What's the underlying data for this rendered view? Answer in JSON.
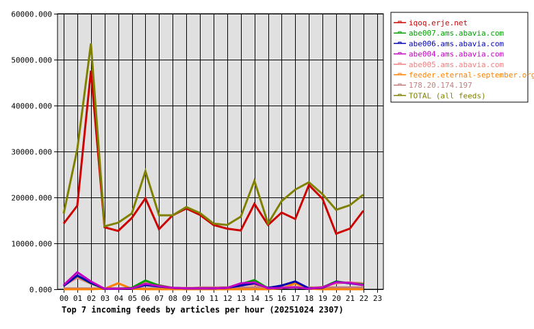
{
  "chart_data": {
    "type": "line",
    "title": "Top 7 incoming feeds by articles per hour (20251024 2307)",
    "xlabel": "",
    "ylabel": "",
    "ylim": [
      0,
      60000
    ],
    "grid": true,
    "legend_position": "right-top",
    "y_ticks": [
      "0.000",
      "10000.000",
      "20000.000",
      "30000.000",
      "40000.000",
      "50000.000",
      "60000.000"
    ],
    "categories": [
      "00",
      "01",
      "02",
      "03",
      "04",
      "05",
      "06",
      "07",
      "08",
      "09",
      "10",
      "11",
      "12",
      "13",
      "14",
      "15",
      "16",
      "17",
      "18",
      "19",
      "20",
      "21",
      "22",
      "23"
    ],
    "series": [
      {
        "name": "iqoq.erje.net",
        "color": "#cc0000",
        "values": [
          14300,
          18200,
          47600,
          13500,
          12700,
          15500,
          19800,
          13100,
          16100,
          17600,
          16200,
          14000,
          13200,
          12800,
          18600,
          14000,
          16700,
          15300,
          22700,
          19700,
          12100,
          13200,
          17100
        ]
      },
      {
        "name": "abe007.ams.abavia.com",
        "color": "#00a000",
        "values": [
          800,
          2900,
          1300,
          100,
          100,
          300,
          1900,
          800,
          300,
          200,
          200,
          200,
          300,
          1100,
          2000,
          200,
          300,
          400,
          100,
          400,
          1700,
          1300,
          1100
        ]
      },
      {
        "name": "abe006.ams.abavia.com",
        "color": "#0000b0",
        "values": [
          700,
          3000,
          1400,
          100,
          100,
          200,
          900,
          600,
          300,
          200,
          200,
          200,
          300,
          800,
          1300,
          300,
          800,
          1700,
          200,
          300,
          1600,
          1300,
          900
        ]
      },
      {
        "name": "abe004.ams.abavia.com",
        "color": "#c000c0",
        "values": [
          900,
          3700,
          1700,
          100,
          100,
          200,
          1200,
          700,
          300,
          200,
          200,
          200,
          300,
          1300,
          1500,
          200,
          300,
          400,
          100,
          400,
          1500,
          1400,
          900
        ]
      },
      {
        "name": "abe005.ams.abavia.com",
        "color": "#f08080",
        "values": [
          800,
          2500,
          1200,
          200,
          200,
          300,
          1500,
          900,
          300,
          300,
          300,
          300,
          300,
          1000,
          1000,
          300,
          400,
          600,
          200,
          500,
          1300,
          1500,
          1300
        ]
      },
      {
        "name": "feeder.eternal-september.org",
        "color": "#ff8000",
        "values": [
          0,
          0,
          0,
          100,
          1300,
          100,
          0,
          0,
          0,
          0,
          0,
          0,
          0,
          0,
          0,
          0,
          200,
          1300,
          100,
          0,
          0,
          0,
          0
        ]
      },
      {
        "name": "178.20.174.197",
        "color": "#c08080",
        "values": [
          200,
          200,
          200,
          200,
          200,
          200,
          200,
          200,
          200,
          200,
          400,
          400,
          400,
          400,
          400,
          400,
          400,
          400,
          400,
          400,
          400,
          400,
          400
        ]
      },
      {
        "name": "TOTAL (all feeds)",
        "color": "#808000",
        "values": [
          16500,
          30500,
          53500,
          13700,
          14500,
          16500,
          25700,
          16100,
          16100,
          17900,
          16600,
          14300,
          14000,
          15800,
          23600,
          14300,
          19200,
          21700,
          23300,
          20700,
          17300,
          18300,
          20600
        ]
      }
    ]
  },
  "colors": {
    "plot_background": "#e0e0e0",
    "grid": "#000000",
    "page_background": "#ffffff"
  }
}
